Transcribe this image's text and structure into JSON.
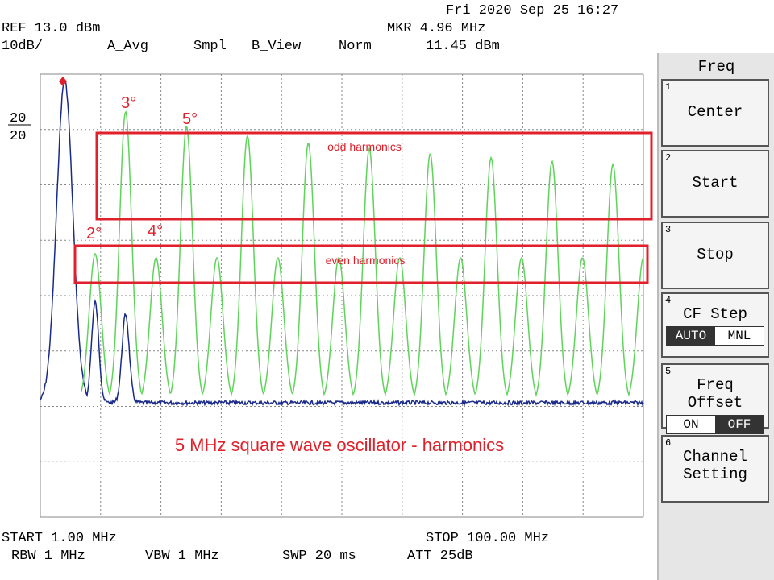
{
  "header": {
    "datetime": "Fri 2020 Sep 25 16:27",
    "ref": "REF 13.0 dBm",
    "scale": "10dB/",
    "avg": "A_Avg",
    "sample": "Smpl",
    "view": "B_View",
    "mode": "Norm",
    "marker_freq": "MKR 4.96 MHz",
    "marker_level": "11.45 dBm"
  },
  "display": {
    "left_label_top": "20",
    "left_label_bottom": "20",
    "annotations": {
      "h3": "3°",
      "h5": "5°",
      "h2": "2°",
      "h4": "4°",
      "odd": "odd harmonics",
      "even": "even harmonics",
      "caption": "5 MHz square wave oscillator - harmonics"
    }
  },
  "footer": {
    "start": "START 1.00 MHz",
    "stop": "STOP 100.00 MHz",
    "rbw": "RBW 1 MHz",
    "vbw": "VBW 1 MHz",
    "swp": "SWP 20 ms",
    "att": "ATT 25dB"
  },
  "menu": {
    "title": "Freq",
    "buttons": [
      {
        "number": "1",
        "label": "Center"
      },
      {
        "number": "2",
        "label": "Start"
      },
      {
        "number": "3",
        "label": "Stop"
      },
      {
        "number": "4",
        "label": "CF Step",
        "options": [
          "AUTO",
          "MNL"
        ]
      },
      {
        "number": "5",
        "label": "Freq Offset",
        "options": [
          "ON",
          "OFF"
        ]
      },
      {
        "number": "6",
        "label": "Channel Setting"
      }
    ]
  }
}
